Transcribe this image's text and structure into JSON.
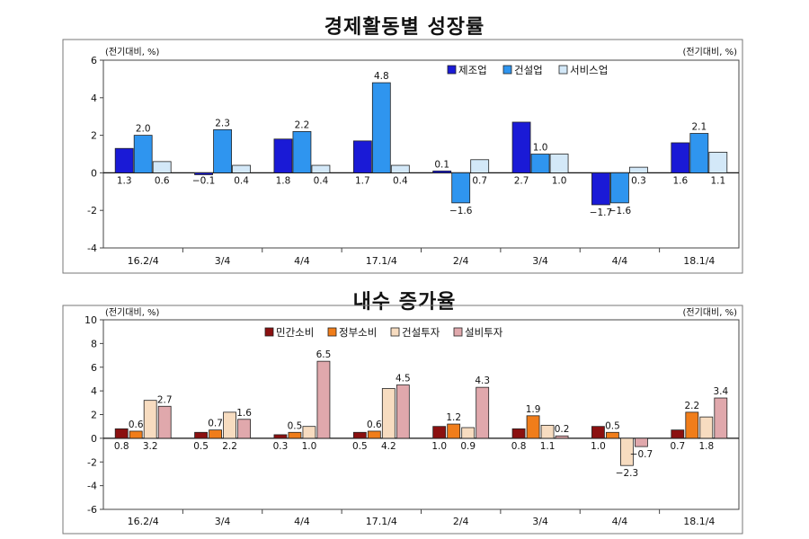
{
  "chart_data": [
    {
      "type": "bar",
      "title": "경제활동별 성장률",
      "unit_left": "(전기대비, %)",
      "unit_right": "(전기대비, %)",
      "categories": [
        "16.2/4",
        "3/4",
        "4/4",
        "17.1/4",
        "2/4",
        "3/4",
        "4/4",
        "18.1/4"
      ],
      "ylim": [
        -4,
        6
      ],
      "yticks": [
        -4,
        -2,
        0,
        2,
        4,
        6
      ],
      "legend_position": "top-right",
      "grid": false,
      "series": [
        {
          "name": "제조업",
          "color": "#1a1ad6",
          "values": [
            1.3,
            -0.1,
            1.8,
            1.7,
            0.1,
            2.7,
            -1.7,
            1.6
          ],
          "labels": [
            "1.3",
            "−0.1",
            "1.8",
            "1.7",
            "0.1",
            "2.7",
            "−1.7",
            "1.6"
          ]
        },
        {
          "name": "건설업",
          "color": "#2f95ef",
          "values": [
            2.0,
            2.3,
            2.2,
            4.8,
            -1.6,
            1.0,
            -1.6,
            2.1
          ],
          "labels": [
            "2.0",
            "2.3",
            "2.2",
            "4.8",
            "−1.6",
            "1.0",
            "−1.6",
            "2.1"
          ]
        },
        {
          "name": "서비스업",
          "color": "#d3e8f8",
          "values": [
            0.6,
            0.4,
            0.4,
            0.4,
            0.7,
            1.0,
            0.3,
            1.1
          ],
          "labels": [
            "0.6",
            "0.4",
            "0.4",
            "0.4",
            "0.7",
            "1.0",
            "0.3",
            "1.1"
          ]
        }
      ]
    },
    {
      "type": "bar",
      "title": "내수 증가율",
      "unit_left": "(전기대비, %)",
      "unit_right": "(전기대비, %)",
      "categories": [
        "16.2/4",
        "3/4",
        "4/4",
        "17.1/4",
        "2/4",
        "3/4",
        "4/4",
        "18.1/4"
      ],
      "ylim": [
        -6,
        10
      ],
      "yticks": [
        -6,
        -4,
        -2,
        0,
        2,
        4,
        6,
        8,
        10
      ],
      "legend_position": "top-center",
      "grid": false,
      "series": [
        {
          "name": "민간소비",
          "color": "#8b1010",
          "values": [
            0.8,
            0.5,
            0.3,
            0.5,
            1.0,
            0.8,
            1.0,
            0.7
          ],
          "labels": [
            "0.8",
            "0.5",
            "0.3",
            "0.5",
            "1.0",
            "0.8",
            "1.0",
            "0.7"
          ]
        },
        {
          "name": "정부소비",
          "color": "#f07d1a",
          "values": [
            0.6,
            0.7,
            0.5,
            0.6,
            1.2,
            1.9,
            0.5,
            2.2
          ],
          "labels": [
            "0.6",
            "0.7",
            "0.5",
            "0.6",
            "1.2",
            "1.9",
            "0.5",
            "2.2"
          ]
        },
        {
          "name": "건설투자",
          "color": "#f7dcc0",
          "values": [
            3.2,
            2.2,
            1.0,
            4.2,
            0.9,
            1.1,
            -2.3,
            1.8
          ],
          "labels": [
            "3.2",
            "2.2",
            "1.0",
            "4.2",
            "0.9",
            "1.1",
            "−2.3",
            "1.8"
          ]
        },
        {
          "name": "설비투자",
          "color": "#e0a8ac",
          "values": [
            2.7,
            1.6,
            6.5,
            4.5,
            4.3,
            0.2,
            -0.7,
            3.4
          ],
          "labels": [
            "2.7",
            "1.6",
            "6.5",
            "4.5",
            "4.3",
            "0.2",
            "−0.7",
            "3.4"
          ]
        }
      ]
    }
  ]
}
